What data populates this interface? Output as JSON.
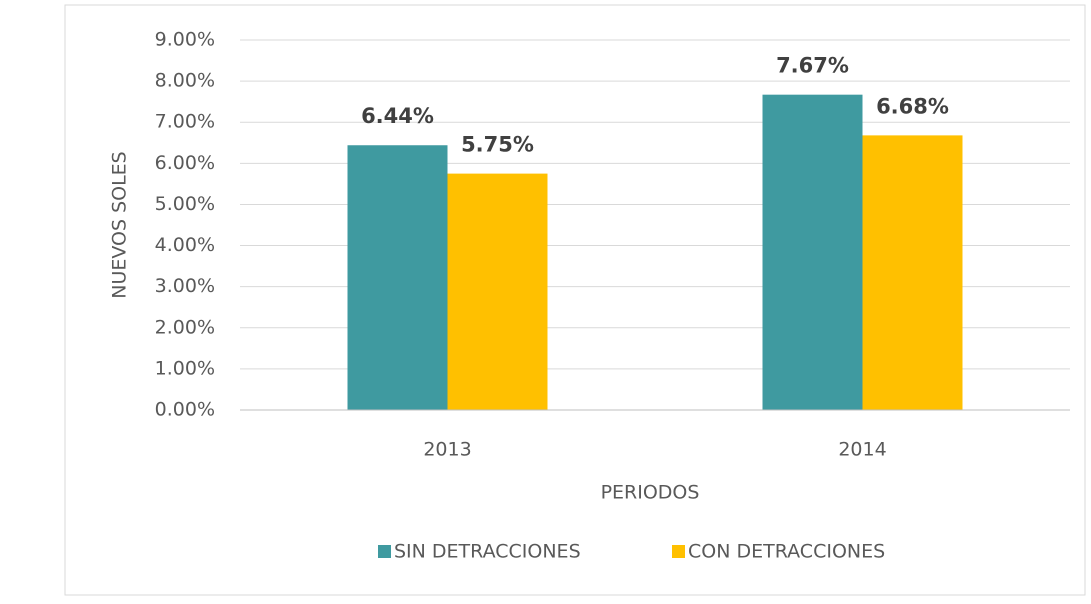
{
  "chart_data": {
    "type": "bar",
    "x_label": "PERIODOS",
    "y_label": "NUEVOS SOLES",
    "categories": [
      "2013",
      "2014"
    ],
    "series": [
      {
        "name": "SIN DETRACCIONES",
        "color": "#3f9aa0",
        "values": [
          6.44,
          7.67
        ],
        "value_labels": [
          "6.44%",
          "7.67%"
        ]
      },
      {
        "name": "CON DETRACCIONES",
        "color": "#ffc000",
        "values": [
          5.75,
          6.68
        ],
        "value_labels": [
          "5.75%",
          "6.68%"
        ]
      }
    ],
    "ylim": [
      0,
      9
    ],
    "yticks": [
      {
        "value": 0,
        "label": "0.00%"
      },
      {
        "value": 1,
        "label": "1.00%"
      },
      {
        "value": 2,
        "label": "2.00%"
      },
      {
        "value": 3,
        "label": "3.00%"
      },
      {
        "value": 4,
        "label": "4.00%"
      },
      {
        "value": 5,
        "label": "5.00%"
      },
      {
        "value": 6,
        "label": "6.00%"
      },
      {
        "value": 7,
        "label": "7.00%"
      },
      {
        "value": 8,
        "label": "8.00%"
      },
      {
        "value": 9,
        "label": "9.00%"
      }
    ],
    "grid": true,
    "legend": "bottom"
  }
}
